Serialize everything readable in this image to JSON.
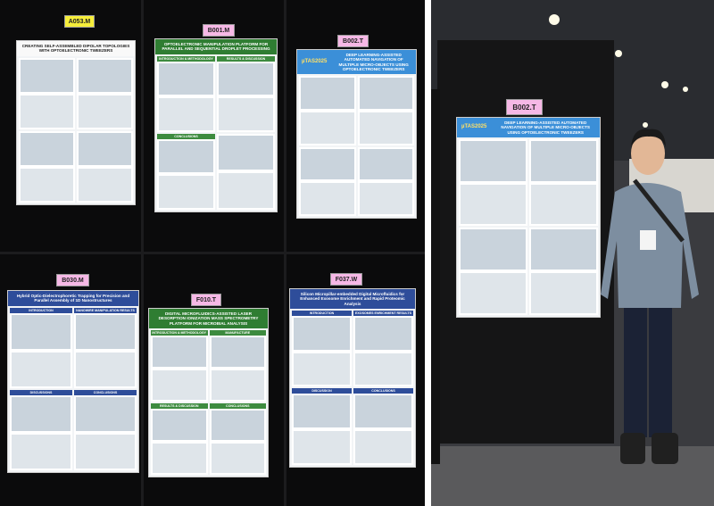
{
  "posters": [
    {
      "board": "A053.M",
      "title": "CREATING SELF-ASSEMBLED DIPOLAR TOPOLOGIES WITH OPTOELECTRONIC TWEEZERS",
      "sections": []
    },
    {
      "board": "B001.M",
      "title": "OPTOELECTRONIC MANIPULATION PLATFORM FOR PARALLEL AND SEQUENTIAL DROPLET PROCESSING",
      "sections": [
        "INTRODUCTION & METHODOLOGY",
        "RESULTS & DISCUSSION",
        "CONCLUSIONS"
      ]
    },
    {
      "board": "B002.T",
      "title": "DEEP LEARNING-ASSISTED AUTOMATED NAVIGATION OF MULTIPLE MICRO-OBJECTS USING OPTOELECTRONIC TWEEZERS",
      "logo": "µTAS2025",
      "sections": []
    },
    {
      "board": "B030.M",
      "title": "Hybrid Optic-Dielectrophoretic Trapping for Precision and Parallel Assembly of 1D Nanostructures",
      "sections": [
        "INTRODUCTION",
        "NANOWIRE MANIPULATION RESULTS",
        "DISCUSSIONS",
        "CONCLUSIONS"
      ]
    },
    {
      "board": "F010.T",
      "title": "DIGITAL MICROFLUIDICS-ASSISTED LASER DESORPTION IONIZATION MASS SPECTROMETRY PLATFORM FOR MICROBIAL ANALYSIS",
      "sections": [
        "INTRODUCTION & METHODOLOGY",
        "MANUFACTURE",
        "RESULTS & DISCUSSION",
        "CONCLUSIONS"
      ]
    },
    {
      "board": "F037.W",
      "title": "Silicon Micropillar-embedded Digital Microfluidics for Enhanced Exosome Enrichment and Rapid Proteomic Analysis",
      "sections": [
        "INTRODUCTION",
        "EXOSOMES ENRICHMENT RESULTS",
        "DISCUSSION",
        "CONCLUSIONS"
      ]
    }
  ],
  "photo": {
    "board": "B002.T",
    "title": "DEEP LEARNING-ASSISTED AUTOMATED NAVIGATION OF MULTIPLE MICRO-OBJECTS USING OPTOELECTRONIC TWEEZERS",
    "logo": "µTAS2025"
  }
}
